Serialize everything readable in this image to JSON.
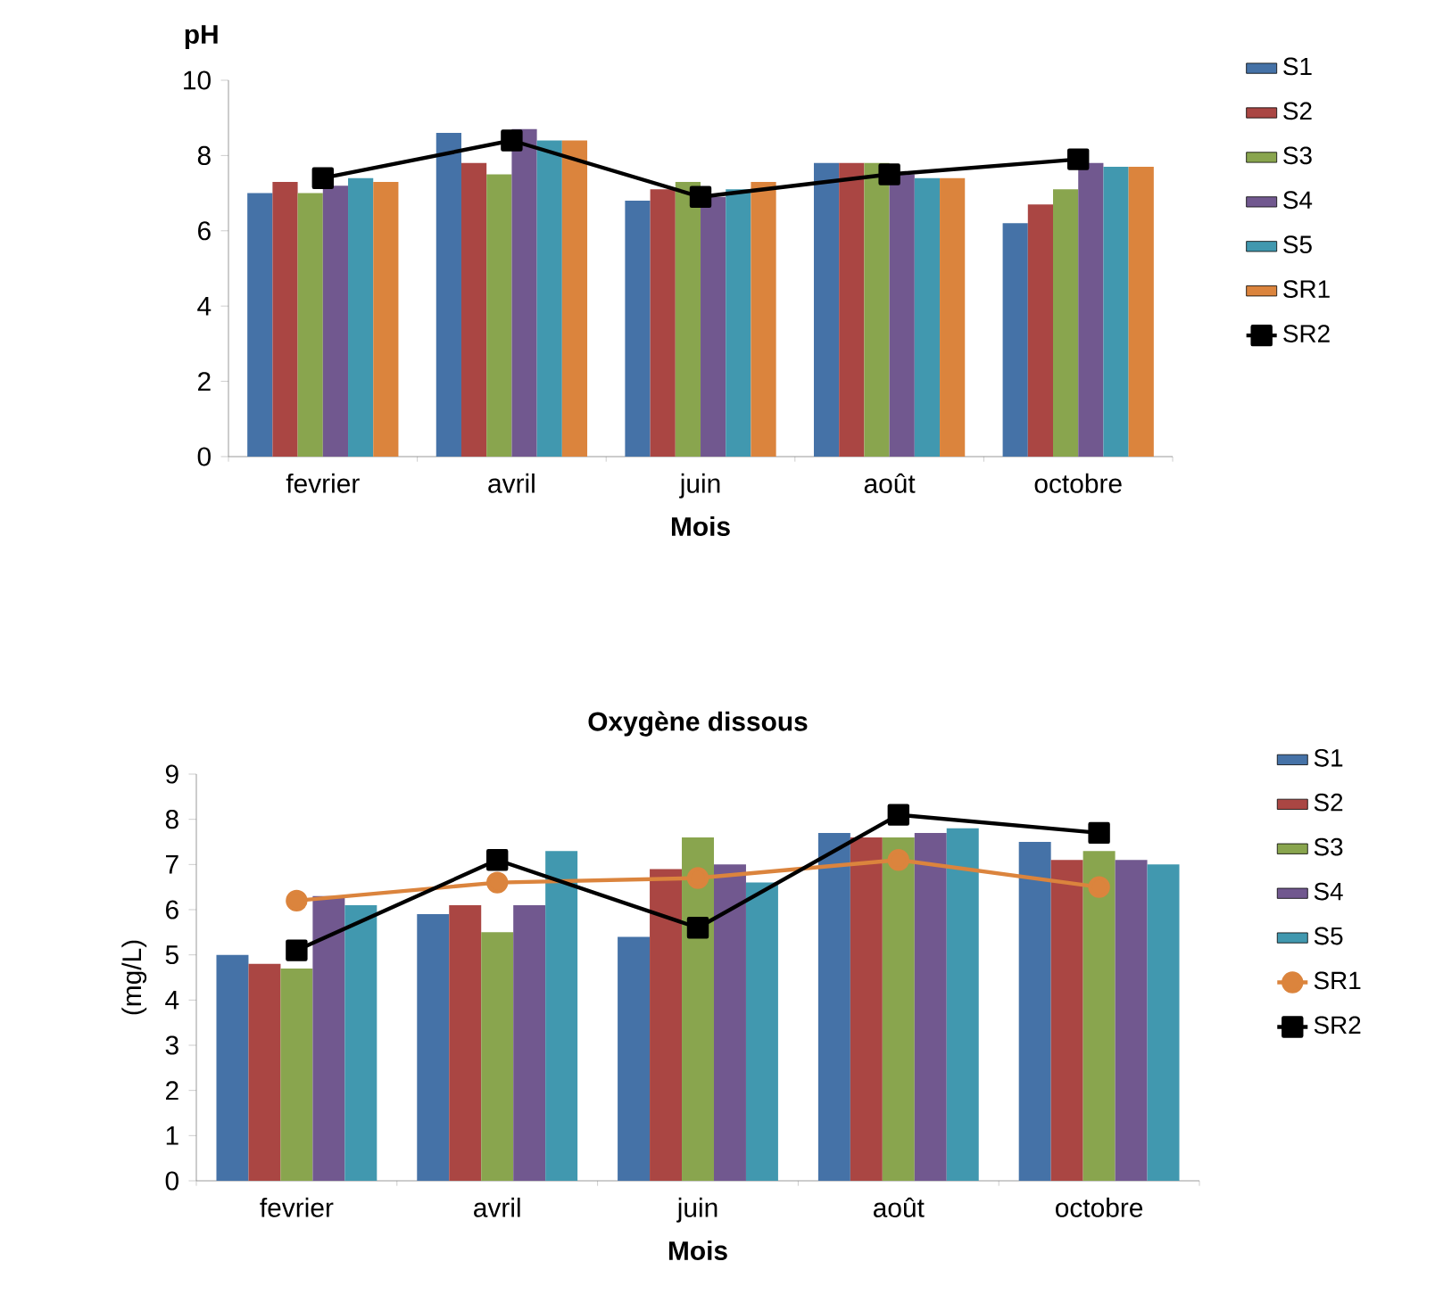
{
  "chart_data": [
    {
      "type": "bar",
      "title": "pH",
      "xlabel": "Mois",
      "categories": [
        "fevrier",
        "avril",
        "juin",
        "août",
        "octobre"
      ],
      "ylim": [
        0,
        10
      ],
      "yticks": [
        0,
        2,
        4,
        6,
        8,
        10
      ],
      "legend": "right",
      "series": [
        {
          "name": "S1",
          "color": "#4572a7",
          "values": [
            7.0,
            8.6,
            6.8,
            7.8,
            6.2
          ]
        },
        {
          "name": "S2",
          "color": "#aa4643",
          "values": [
            7.3,
            7.8,
            7.1,
            7.8,
            6.7
          ]
        },
        {
          "name": "S3",
          "color": "#89a54e",
          "values": [
            7.0,
            7.5,
            7.3,
            7.8,
            7.1
          ]
        },
        {
          "name": "S4",
          "color": "#71588f",
          "values": [
            7.2,
            8.7,
            6.9,
            7.5,
            7.8
          ]
        },
        {
          "name": "S5",
          "color": "#4198af",
          "values": [
            7.4,
            8.4,
            7.1,
            7.4,
            7.7
          ]
        },
        {
          "name": "SR1",
          "color": "#db843d",
          "values": [
            7.3,
            8.4,
            7.3,
            7.4,
            7.7
          ]
        },
        {
          "name": "SR2",
          "color": "#000000",
          "type": "line",
          "marker": "square",
          "values": [
            7.4,
            8.4,
            6.9,
            7.5,
            7.9
          ]
        }
      ]
    },
    {
      "type": "bar",
      "title": "Oxygène dissous",
      "xlabel": "Mois",
      "ylabel": "(mg/L)",
      "categories": [
        "fevrier",
        "avril",
        "juin",
        "août",
        "octobre"
      ],
      "ylim": [
        0,
        9
      ],
      "yticks": [
        0,
        1,
        2,
        3,
        4,
        5,
        6,
        7,
        8,
        9
      ],
      "legend": "right",
      "series": [
        {
          "name": "S1",
          "color": "#4572a7",
          "values": [
            5.0,
            5.9,
            5.4,
            7.7,
            7.5
          ]
        },
        {
          "name": "S2",
          "color": "#aa4643",
          "values": [
            4.8,
            6.1,
            6.9,
            7.6,
            7.1
          ]
        },
        {
          "name": "S3",
          "color": "#89a54e",
          "values": [
            4.7,
            5.5,
            7.6,
            7.6,
            7.3
          ]
        },
        {
          "name": "S4",
          "color": "#71588f",
          "values": [
            6.3,
            6.1,
            7.0,
            7.7,
            7.1
          ]
        },
        {
          "name": "S5",
          "color": "#4198af",
          "values": [
            6.1,
            7.3,
            6.6,
            7.8,
            7.0
          ]
        },
        {
          "name": "SR1",
          "color": "#db843d",
          "type": "line",
          "marker": "circle",
          "values": [
            6.2,
            6.6,
            6.7,
            7.1,
            6.5
          ]
        },
        {
          "name": "SR2",
          "color": "#000000",
          "type": "line",
          "marker": "square",
          "values": [
            5.1,
            7.1,
            5.6,
            8.1,
            7.7
          ]
        }
      ]
    }
  ]
}
